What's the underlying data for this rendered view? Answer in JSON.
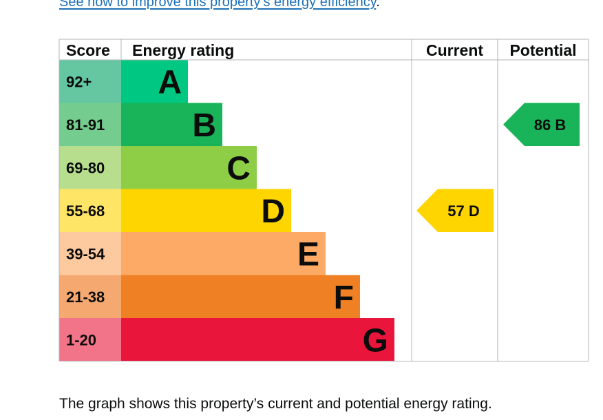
{
  "link": {
    "text": "See how to improve this property’s energy efficiency",
    "trailing": "."
  },
  "caption": "The graph shows this property’s current and potential energy rating.",
  "chart_data": {
    "type": "bar",
    "headers": {
      "score": "Score",
      "rating": "Energy rating",
      "current": "Current",
      "potential": "Potential"
    },
    "bands": [
      {
        "letter": "A",
        "range": "92+",
        "color": "#00c781",
        "score_bg": "#64c7a2"
      },
      {
        "letter": "B",
        "range": "81-91",
        "color": "#19b459",
        "score_bg": "#74cd8e"
      },
      {
        "letter": "C",
        "range": "69-80",
        "color": "#8dce46",
        "score_bg": "#b7de8c"
      },
      {
        "letter": "D",
        "range": "55-68",
        "color": "#ffd500",
        "score_bg": "#ffe566"
      },
      {
        "letter": "E",
        "range": "39-54",
        "color": "#fcaa65",
        "score_bg": "#fdcaa0"
      },
      {
        "letter": "F",
        "range": "21-38",
        "color": "#ef8023",
        "score_bg": "#f5a970"
      },
      {
        "letter": "G",
        "range": "1-20",
        "color": "#e9153b",
        "score_bg": "#f27489"
      }
    ],
    "current": {
      "value": 57,
      "band": "D",
      "label": "57  D"
    },
    "potential": {
      "value": 86,
      "band": "B",
      "label": "86  B"
    }
  }
}
